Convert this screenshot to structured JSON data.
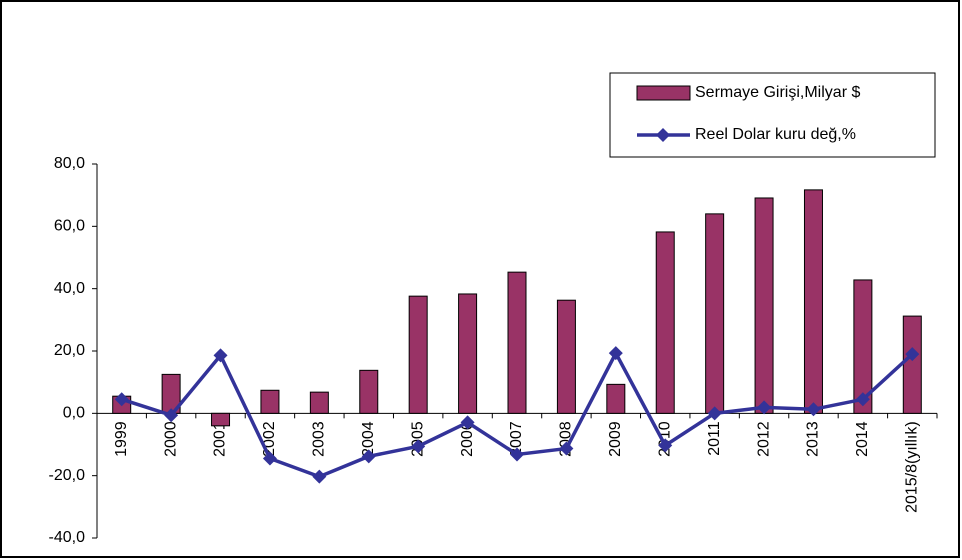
{
  "chart_data": {
    "type": "combo",
    "categories": [
      "1999",
      "2000",
      "2001",
      "2002",
      "2003",
      "2004",
      "2005",
      "2006",
      "2007",
      "2008",
      "2009",
      "2010",
      "2011",
      "2012",
      "2013",
      "2014",
      "2015/8(yıllık)"
    ],
    "series": [
      {
        "name": "Sermaye Girişi,Milyar $",
        "type": "bar",
        "color": "#993366",
        "values": [
          5.5,
          12.5,
          -4,
          7.4,
          6.8,
          13.8,
          37.6,
          38.3,
          45.3,
          36.3,
          9.3,
          58.2,
          64,
          69.1,
          71.7,
          42.8,
          31.2
        ]
      },
      {
        "name": "Reel Dolar kuru değ,%",
        "type": "line",
        "color": "#333399",
        "values": [
          4.5,
          -0.6,
          18.6,
          -14.5,
          -20.3,
          -13.8,
          -10.6,
          -2.9,
          -13.2,
          -11.3,
          19.3,
          -10.3,
          0,
          1.9,
          1.3,
          4.5,
          19
        ]
      }
    ],
    "ylim": [
      -40,
      80
    ],
    "yticks": [
      {
        "value": -40,
        "label": "-40,0"
      },
      {
        "value": -20,
        "label": "-20,0"
      },
      {
        "value": 0,
        "label": "0,0"
      },
      {
        "value": 20,
        "label": "20,0"
      },
      {
        "value": 40,
        "label": "40,0"
      },
      {
        "value": 60,
        "label": "60,0"
      },
      {
        "value": 80,
        "label": "80,0"
      }
    ],
    "legend": "upper right",
    "grid": false
  }
}
